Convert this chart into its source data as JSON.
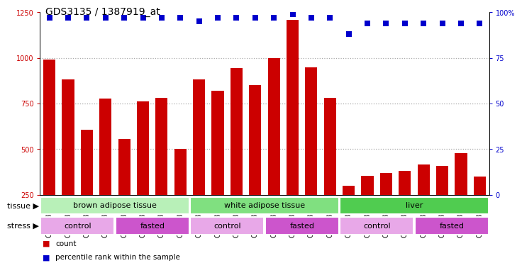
{
  "title": "GDS3135 / 1387919_at",
  "samples": [
    "GSM184414",
    "GSM184415",
    "GSM184416",
    "GSM184417",
    "GSM184418",
    "GSM184419",
    "GSM184420",
    "GSM184421",
    "GSM184422",
    "GSM184423",
    "GSM184424",
    "GSM184425",
    "GSM184426",
    "GSM184427",
    "GSM184428",
    "GSM184429",
    "GSM184430",
    "GSM184431",
    "GSM184432",
    "GSM184433",
    "GSM184434",
    "GSM184435",
    "GSM184436",
    "GSM184437"
  ],
  "counts": [
    993,
    882,
    606,
    776,
    556,
    763,
    782,
    501,
    883,
    820,
    946,
    852,
    998,
    1210,
    947,
    780,
    300,
    355,
    370,
    380,
    415,
    408,
    477,
    350
  ],
  "percentile_ranks": [
    97,
    97,
    97,
    97,
    97,
    97,
    97,
    97,
    95,
    97,
    97,
    97,
    97,
    99,
    97,
    97,
    88,
    94,
    94,
    94,
    94,
    94,
    94,
    94
  ],
  "bar_color": "#cc0000",
  "dot_color": "#0000cc",
  "ylim_left": [
    250,
    1250
  ],
  "ylim_right": [
    0,
    100
  ],
  "yticks_left": [
    250,
    500,
    750,
    1000,
    1250
  ],
  "yticks_right": [
    0,
    25,
    50,
    75,
    100
  ],
  "tissue_groups": [
    {
      "label": "brown adipose tissue",
      "start": 0,
      "end": 8,
      "color": "#b8f0b8"
    },
    {
      "label": "white adipose tissue",
      "start": 8,
      "end": 16,
      "color": "#80e080"
    },
    {
      "label": "liver",
      "start": 16,
      "end": 24,
      "color": "#50cc50"
    }
  ],
  "stress_groups": [
    {
      "label": "control",
      "start": 0,
      "end": 4,
      "color": "#e8a8e8"
    },
    {
      "label": "fasted",
      "start": 4,
      "end": 8,
      "color": "#cc55cc"
    },
    {
      "label": "control",
      "start": 8,
      "end": 12,
      "color": "#e8a8e8"
    },
    {
      "label": "fasted",
      "start": 12,
      "end": 16,
      "color": "#cc55cc"
    },
    {
      "label": "control",
      "start": 16,
      "end": 20,
      "color": "#e8a8e8"
    },
    {
      "label": "fasted",
      "start": 20,
      "end": 24,
      "color": "#cc55cc"
    }
  ],
  "row_label_tissue": "tissue",
  "row_label_stress": "stress",
  "legend_count_label": "count",
  "legend_pct_label": "percentile rank within the sample",
  "dotted_line_color": "#aaaaaa",
  "axis_bg_color": "#ffffff",
  "plot_bg_color": "#ffffff",
  "title_fontsize": 10,
  "tick_fontsize": 7,
  "annotation_fontsize": 8,
  "dot_size": 30,
  "bar_width": 0.65
}
